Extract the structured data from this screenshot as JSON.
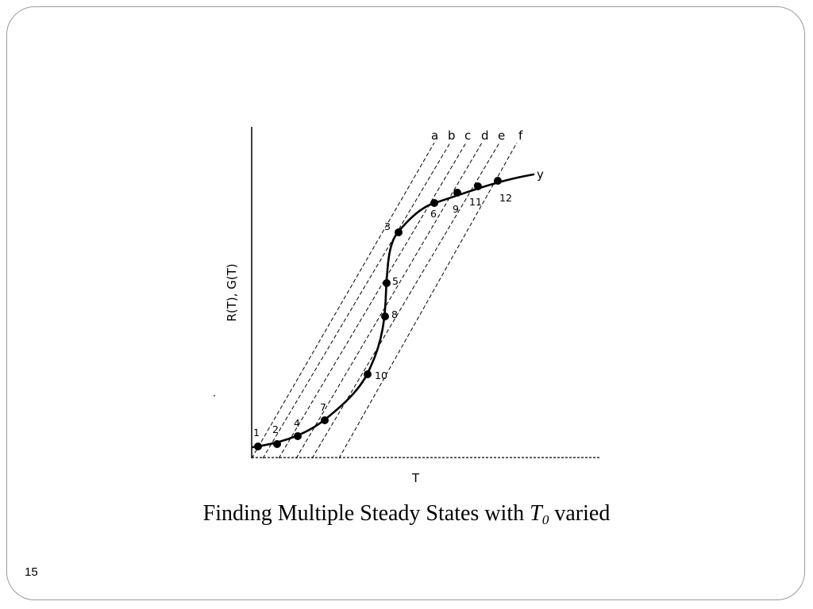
{
  "slide": {
    "caption": {
      "prefix": "Finding Multiple Steady States with ",
      "var": "T",
      "sub": "0",
      "suffix": " varied"
    },
    "page_number": "15"
  },
  "diagram": {
    "y_axis_label": "R(T), G(T)",
    "x_axis_label": "T",
    "curve_label": "y",
    "line_labels": [
      "a",
      "b",
      "c",
      "d",
      "e",
      "f"
    ],
    "point_labels": [
      "1",
      "2",
      "3",
      "4",
      "5",
      "6",
      "7",
      "8",
      "9",
      "10",
      "11",
      "12"
    ]
  }
}
